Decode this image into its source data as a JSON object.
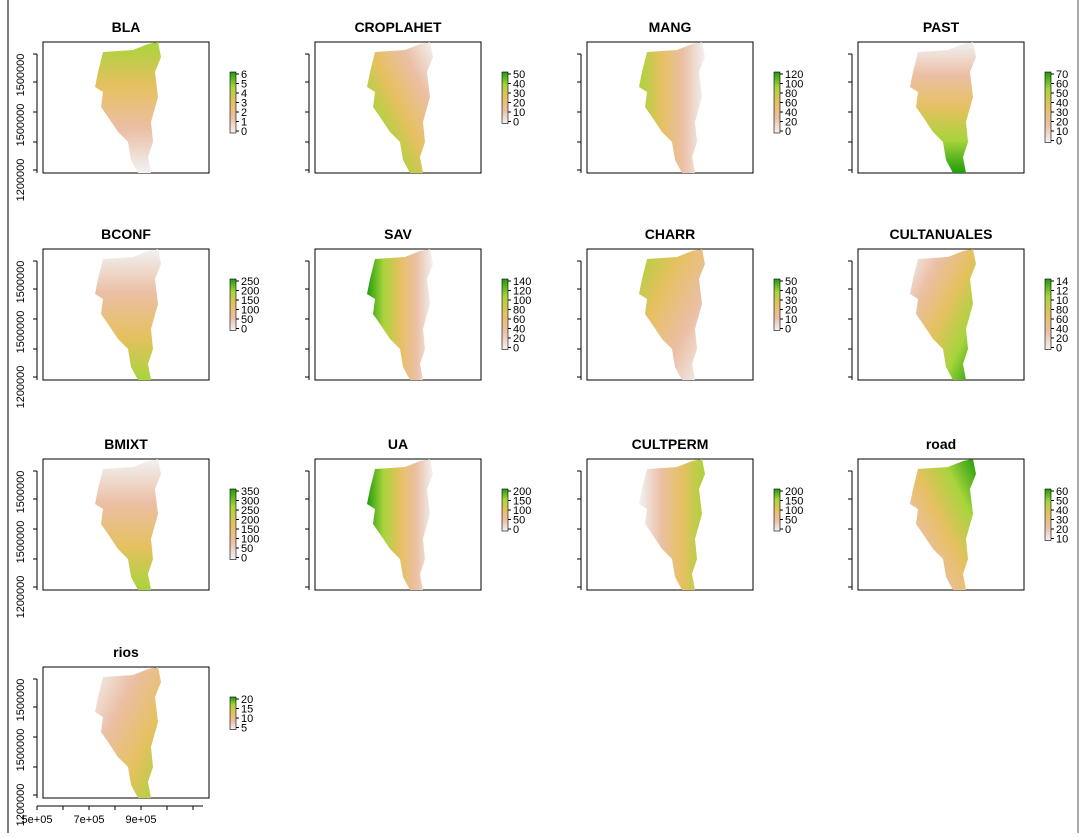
{
  "panels": [
    {
      "title": "BLA",
      "legend": [
        "6",
        "5",
        "4",
        "3",
        "2",
        "1",
        "0"
      ]
    },
    {
      "title": "CROPLAHET",
      "legend": [
        "50",
        "40",
        "30",
        "20",
        "10",
        "0"
      ]
    },
    {
      "title": "MANG",
      "legend": [
        "120",
        "100",
        "80",
        "60",
        "40",
        "20",
        "0"
      ]
    },
    {
      "title": "PAST",
      "legend": [
        "70",
        "60",
        "50",
        "40",
        "30",
        "20",
        "10",
        "0"
      ]
    },
    {
      "title": "BCONF",
      "legend": [
        "250",
        "200",
        "150",
        "100",
        "50",
        "0"
      ]
    },
    {
      "title": "SAV",
      "legend": [
        "140",
        "120",
        "100",
        "80",
        "60",
        "40",
        "20",
        "0"
      ]
    },
    {
      "title": "CHARR",
      "legend": [
        "50",
        "40",
        "30",
        "20",
        "10",
        "0"
      ]
    },
    {
      "title": "CULTANUALES",
      "legend": [
        "14",
        "12",
        "10",
        "80",
        "60",
        "40",
        "20",
        "0"
      ]
    },
    {
      "title": "BMIXT",
      "legend": [
        "350",
        "300",
        "250",
        "200",
        "150",
        "100",
        "50",
        "0"
      ]
    },
    {
      "title": "UA",
      "legend": [
        "200",
        "150",
        "100",
        "50",
        "0"
      ]
    },
    {
      "title": "CULTPERM",
      "legend": [
        "200",
        "150",
        "100",
        "50",
        "0"
      ]
    },
    {
      "title": "road",
      "legend": [
        "60",
        "50",
        "40",
        "30",
        "20",
        "10"
      ]
    },
    {
      "title": "rios",
      "legend": [
        "20",
        "15",
        "10",
        "5"
      ]
    }
  ],
  "y_axis_labels": [
    "1500000",
    "1500000",
    "1200000"
  ],
  "x_axis_labels": [
    "5e+05",
    "7e+05",
    "9e+05"
  ]
}
